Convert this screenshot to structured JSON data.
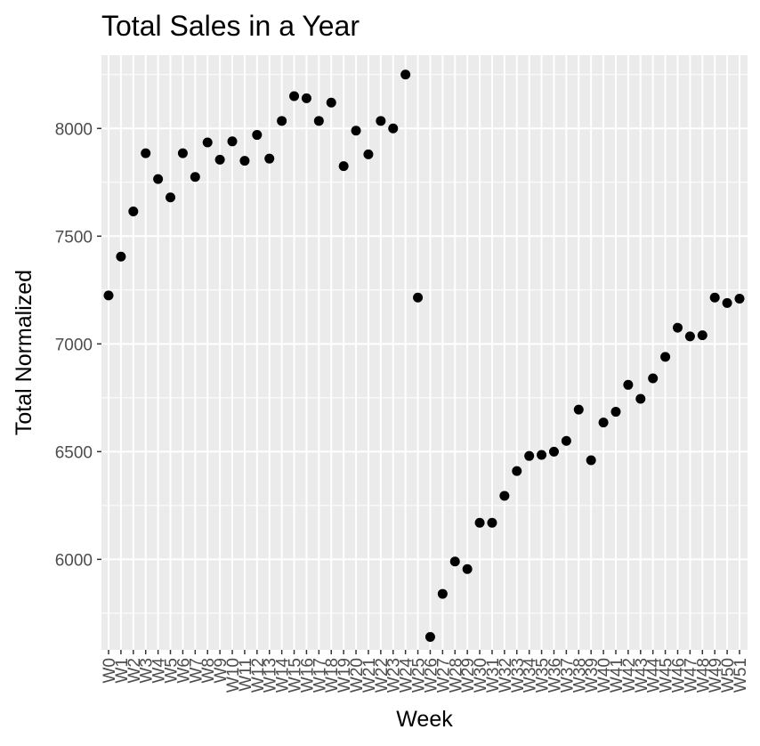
{
  "chart_data": {
    "type": "scatter",
    "title": "Total Sales in a Year",
    "xlabel": "Week",
    "ylabel": "Total Normalized",
    "ylim": [
      5580,
      8340
    ],
    "yticks": [
      6000,
      6500,
      7000,
      7500,
      8000
    ],
    "grid": true,
    "categories": [
      "W0",
      "W1",
      "W2",
      "W3",
      "W4",
      "W5",
      "W6",
      "W7",
      "W8",
      "W9",
      "W10",
      "W11",
      "W12",
      "W13",
      "W14",
      "W15",
      "W16",
      "W17",
      "W18",
      "W19",
      "W20",
      "W21",
      "W22",
      "W23",
      "W24",
      "W25",
      "W26",
      "W27",
      "W28",
      "W29",
      "W30",
      "W31",
      "W32",
      "W33",
      "W34",
      "W35",
      "W36",
      "W37",
      "W38",
      "W39",
      "W40",
      "W41",
      "W42",
      "W43",
      "W44",
      "W45",
      "W46",
      "W47",
      "W48",
      "W49",
      "W50",
      "W51"
    ],
    "values": [
      7225,
      7405,
      7615,
      7885,
      7765,
      7680,
      7885,
      7775,
      7935,
      7855,
      7940,
      7850,
      7970,
      7860,
      8035,
      8150,
      8140,
      8035,
      8120,
      7825,
      7990,
      7880,
      8035,
      8000,
      8250,
      7215,
      5640,
      5840,
      5990,
      5955,
      6170,
      6170,
      6295,
      6410,
      6480,
      6485,
      6500,
      6550,
      6695,
      6460,
      6635,
      6685,
      6810,
      6745,
      6840,
      6940,
      7075,
      7035,
      7040,
      7215,
      7190,
      7210
    ],
    "point_color": "#000000",
    "panel_color": "#ebebeb",
    "grid_color": "#ffffff"
  }
}
